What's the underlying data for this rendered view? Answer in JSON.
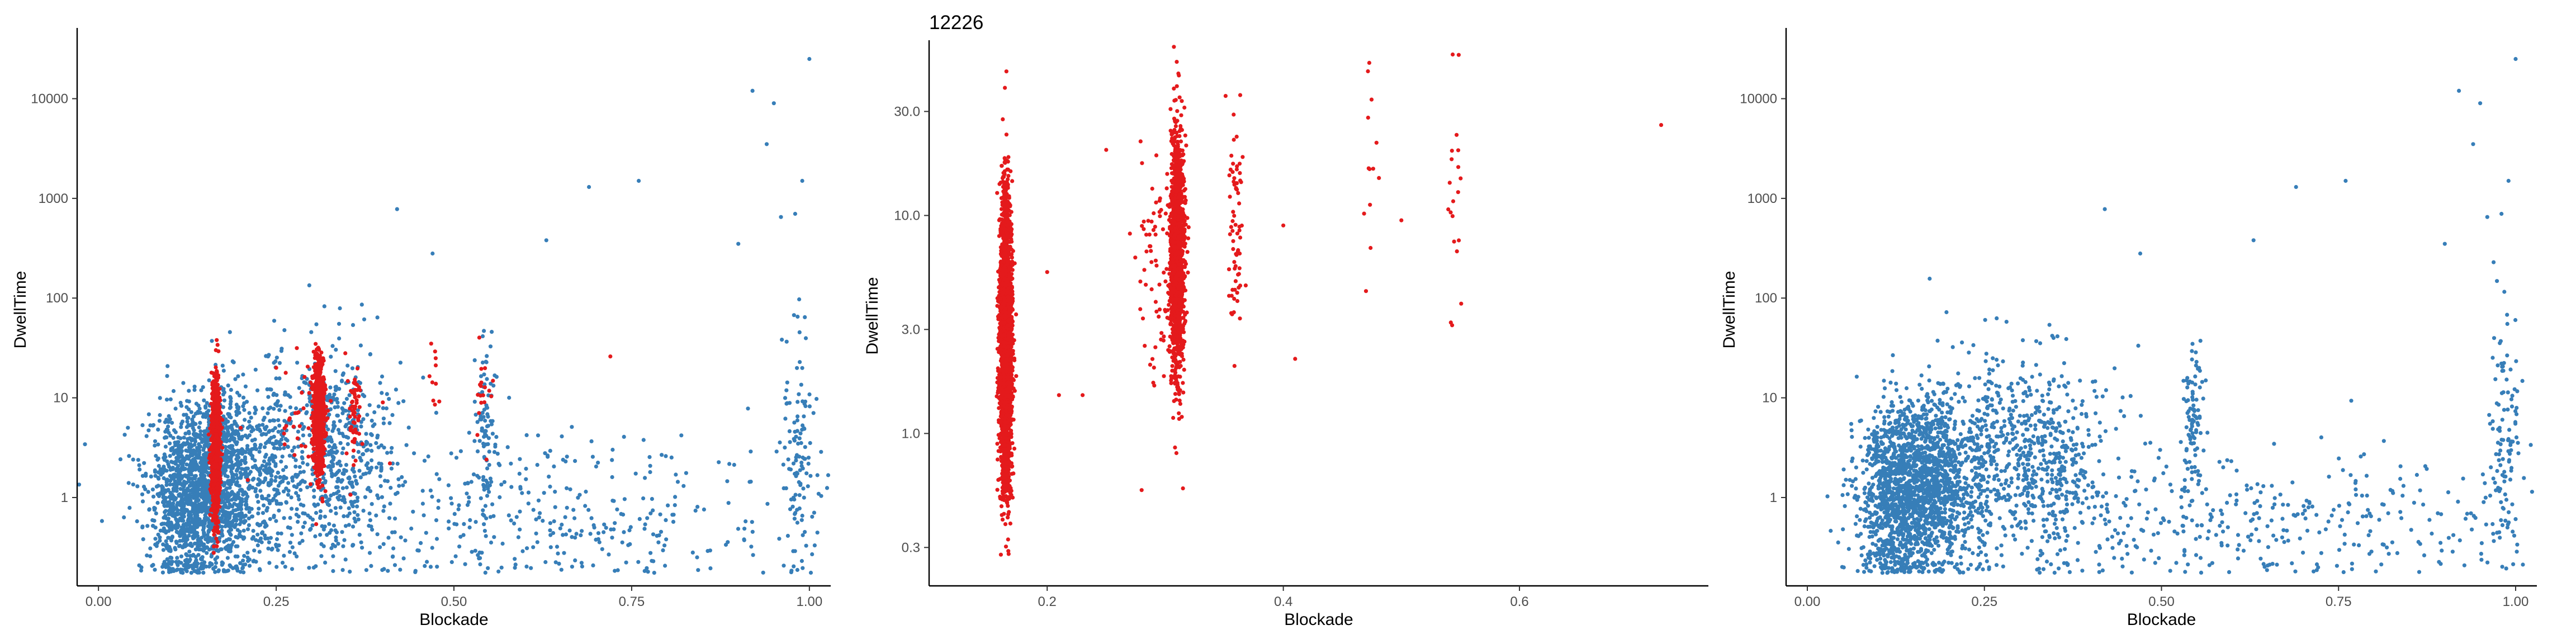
{
  "colors": {
    "highlight": "#e41a1c",
    "background_points": "#377eb8",
    "axis": "#000000",
    "tick_text": "#4d4d4d"
  },
  "chart_data": [
    {
      "type": "scatter",
      "title": "",
      "xlabel": "Blockade",
      "ylabel": "DwellTime",
      "x_ticks": [
        "0.00",
        "0.25",
        "0.50",
        "0.75",
        "1.00"
      ],
      "y_ticks": [
        "1",
        "10",
        "100",
        "1000",
        "10000"
      ],
      "y_scale": "log",
      "xlim": [
        -0.03,
        1.03
      ],
      "ylim": [
        0.13,
        45000
      ],
      "grid": false,
      "legend": "none",
      "series": [
        {
          "color": "#377eb8",
          "clusters": [
            {
              "x": 0.125,
              "y": 1.0,
              "sx": 0.028,
              "sy": 0.45,
              "n": 1000
            },
            {
              "x": 0.18,
              "y": 1.6,
              "sx": 0.03,
              "sy": 0.45,
              "n": 1000
            },
            {
              "x": 0.33,
              "y": 2.8,
              "sx": 0.045,
              "sy": 0.5,
              "n": 550
            },
            {
              "x": 0.25,
              "y": 3.0,
              "sx": 0.012,
              "sy": 0.5,
              "n": 120
            },
            {
              "x": 0.545,
              "y": 6.0,
              "sx": 0.008,
              "sy": 0.45,
              "n": 90
            },
            {
              "x": 0.6,
              "y": 0.6,
              "sx": 0.22,
              "sy": 0.4,
              "n": 420
            },
            {
              "x": 0.985,
              "y": 3.0,
              "sx": 0.012,
              "sy": 0.7,
              "n": 110
            }
          ],
          "points": [
            {
              "x": 1.0,
              "y": 25000
            },
            {
              "x": 0.95,
              "y": 9000
            },
            {
              "x": 0.94,
              "y": 3500
            },
            {
              "x": 0.92,
              "y": 12000
            },
            {
              "x": 0.99,
              "y": 1500
            },
            {
              "x": 0.76,
              "y": 1500
            },
            {
              "x": 0.69,
              "y": 1300
            },
            {
              "x": 0.63,
              "y": 380
            },
            {
              "x": 0.42,
              "y": 780
            },
            {
              "x": 0.47,
              "y": 280
            },
            {
              "x": 0.96,
              "y": 650
            },
            {
              "x": 0.98,
              "y": 700
            },
            {
              "x": 0.9,
              "y": 350
            }
          ]
        },
        {
          "color": "#e41a1c",
          "clusters": [
            {
              "x": 0.165,
              "y": 3.0,
              "sx": 0.003,
              "sy": 0.35,
              "n": 900
            },
            {
              "x": 0.31,
              "y": 6.5,
              "sx": 0.004,
              "sy": 0.3,
              "n": 700
            },
            {
              "x": 0.36,
              "y": 8.0,
              "sx": 0.004,
              "sy": 0.28,
              "n": 60
            },
            {
              "x": 0.47,
              "y": 15.0,
              "sx": 0.005,
              "sy": 0.25,
              "n": 10
            },
            {
              "x": 0.54,
              "y": 14.0,
              "sx": 0.006,
              "sy": 0.3,
              "n": 18
            },
            {
              "x": 0.285,
              "y": 6.0,
              "sx": 0.02,
              "sy": 0.35,
              "n": 40
            }
          ],
          "points": [
            {
              "x": 0.72,
              "y": 26
            },
            {
              "x": 0.4,
              "y": 9
            },
            {
              "x": 0.41,
              "y": 2.2
            },
            {
              "x": 0.2,
              "y": 5
            },
            {
              "x": 0.21,
              "y": 1.5
            },
            {
              "x": 0.25,
              "y": 20
            }
          ]
        }
      ]
    },
    {
      "type": "scatter",
      "title": "12226",
      "xlabel": "Blockade",
      "ylabel": "DwellTime",
      "x_ticks": [
        "0.2",
        "0.4",
        "0.6"
      ],
      "y_ticks": [
        "0.3",
        "1.0",
        "3.0",
        "10.0",
        "30.0"
      ],
      "y_scale": "log",
      "xlim": [
        0.1,
        0.76
      ],
      "ylim": [
        0.2,
        60
      ],
      "grid": false,
      "legend": "none",
      "series": [
        {
          "color": "#e41a1c",
          "clusters": [
            {
              "x": 0.165,
              "y": 2.5,
              "sx": 0.0025,
              "sy": 0.33,
              "n": 2600
            },
            {
              "x": 0.31,
              "y": 6.5,
              "sx": 0.003,
              "sy": 0.28,
              "n": 1400
            },
            {
              "x": 0.29,
              "y": 6.0,
              "sx": 0.008,
              "sy": 0.3,
              "n": 60
            },
            {
              "x": 0.36,
              "y": 8.5,
              "sx": 0.003,
              "sy": 0.28,
              "n": 70
            },
            {
              "x": 0.475,
              "y": 14.0,
              "sx": 0.003,
              "sy": 0.25,
              "n": 12
            },
            {
              "x": 0.545,
              "y": 14.0,
              "sx": 0.003,
              "sy": 0.3,
              "n": 20
            }
          ],
          "points": [
            {
              "x": 0.72,
              "y": 26
            },
            {
              "x": 0.4,
              "y": 9
            },
            {
              "x": 0.41,
              "y": 2.2
            },
            {
              "x": 0.2,
              "y": 5.5
            },
            {
              "x": 0.21,
              "y": 1.5
            },
            {
              "x": 0.25,
              "y": 20
            },
            {
              "x": 0.28,
              "y": 0.55
            },
            {
              "x": 0.315,
              "y": 0.56
            },
            {
              "x": 0.23,
              "y": 1.5
            },
            {
              "x": 0.5,
              "y": 9.5
            },
            {
              "x": 0.47,
              "y": 4.5
            }
          ]
        }
      ]
    },
    {
      "type": "scatter",
      "title": "",
      "xlabel": "Blockade",
      "ylabel": "DwellTime",
      "x_ticks": [
        "0.00",
        "0.25",
        "0.50",
        "0.75",
        "1.00"
      ],
      "y_ticks": [
        "1",
        "10",
        "100",
        "1000",
        "10000"
      ],
      "y_scale": "log",
      "xlim": [
        -0.03,
        1.03
      ],
      "ylim": [
        0.13,
        45000
      ],
      "grid": false,
      "legend": "none",
      "series": [
        {
          "color": "#377eb8",
          "clusters": [
            {
              "x": 0.125,
              "y": 1.0,
              "sx": 0.028,
              "sy": 0.45,
              "n": 1000
            },
            {
              "x": 0.18,
              "y": 1.6,
              "sx": 0.03,
              "sy": 0.45,
              "n": 1000
            },
            {
              "x": 0.33,
              "y": 2.8,
              "sx": 0.045,
              "sy": 0.5,
              "n": 550
            },
            {
              "x": 0.25,
              "y": 3.0,
              "sx": 0.012,
              "sy": 0.5,
              "n": 120
            },
            {
              "x": 0.545,
              "y": 6.0,
              "sx": 0.008,
              "sy": 0.45,
              "n": 90
            },
            {
              "x": 0.6,
              "y": 0.6,
              "sx": 0.22,
              "sy": 0.4,
              "n": 420
            },
            {
              "x": 0.985,
              "y": 3.0,
              "sx": 0.012,
              "sy": 0.7,
              "n": 110
            }
          ],
          "points": [
            {
              "x": 1.0,
              "y": 25000
            },
            {
              "x": 0.95,
              "y": 9000
            },
            {
              "x": 0.94,
              "y": 3500
            },
            {
              "x": 0.92,
              "y": 12000
            },
            {
              "x": 0.99,
              "y": 1500
            },
            {
              "x": 0.76,
              "y": 1500
            },
            {
              "x": 0.69,
              "y": 1300
            },
            {
              "x": 0.63,
              "y": 380
            },
            {
              "x": 0.42,
              "y": 780
            },
            {
              "x": 0.47,
              "y": 280
            },
            {
              "x": 0.96,
              "y": 650
            },
            {
              "x": 0.98,
              "y": 700
            },
            {
              "x": 0.9,
              "y": 350
            }
          ]
        }
      ]
    }
  ]
}
